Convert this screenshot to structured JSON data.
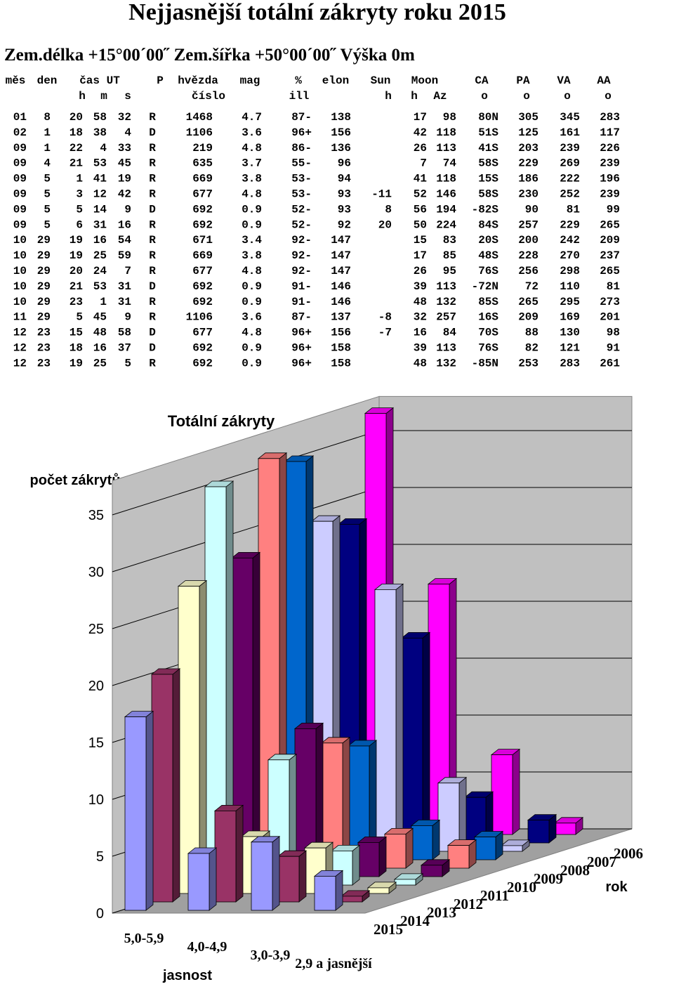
{
  "header": {
    "title": "Nejjasnější totální zákryty roku  2015",
    "location": "Zem.délka +15°00´00˝  Zem.šířka +50°00´00˝  Výška 0m"
  },
  "table": {
    "head1": [
      "měs",
      "den",
      "čas UT",
      "P",
      "hvězda",
      "mag",
      "%",
      "elon",
      "Sun",
      "Moon",
      "CA",
      "PA",
      "VA",
      "AA"
    ],
    "head2": [
      "h",
      "m",
      "s",
      "číslo",
      "ill",
      "h",
      "h",
      "Az",
      "o",
      "o",
      "o",
      "o"
    ],
    "rows": [
      [
        "01",
        "8",
        "20",
        "58",
        "32",
        "R",
        "1468",
        "4.7",
        "87-",
        "138",
        null,
        "17",
        "98",
        "80N",
        "305",
        "345",
        "283"
      ],
      [
        "02",
        "1",
        "18",
        "38",
        "4",
        "D",
        "1106",
        "3.6",
        "96+",
        "156",
        null,
        "42",
        "118",
        "51S",
        "125",
        "161",
        "117"
      ],
      [
        "09",
        "1",
        "22",
        "4",
        "33",
        "R",
        "219",
        "4.8",
        "86-",
        "136",
        null,
        "26",
        "113",
        "41S",
        "203",
        "239",
        "226"
      ],
      [
        "09",
        "4",
        "21",
        "53",
        "45",
        "R",
        "635",
        "3.7",
        "55-",
        "96",
        null,
        "7",
        "74",
        "58S",
        "229",
        "269",
        "239"
      ],
      [
        "09",
        "5",
        "1",
        "41",
        "19",
        "R",
        "669",
        "3.8",
        "53-",
        "94",
        null,
        "41",
        "118",
        "15S",
        "186",
        "222",
        "196"
      ],
      [
        "09",
        "5",
        "3",
        "12",
        "42",
        "R",
        "677",
        "4.8",
        "53-",
        "93",
        "-11",
        "52",
        "146",
        "58S",
        "230",
        "252",
        "239"
      ],
      [
        "09",
        "5",
        "5",
        "14",
        "9",
        "D",
        "692",
        "0.9",
        "52-",
        "93",
        "8",
        "56",
        "194",
        "-82S",
        "90",
        "81",
        "99"
      ],
      [
        "09",
        "5",
        "6",
        "31",
        "16",
        "R",
        "692",
        "0.9",
        "52-",
        "92",
        "20",
        "50",
        "224",
        "84S",
        "257",
        "229",
        "265"
      ],
      [
        "10",
        "29",
        "19",
        "16",
        "54",
        "R",
        "671",
        "3.4",
        "92-",
        "147",
        null,
        "15",
        "83",
        "20S",
        "200",
        "242",
        "209"
      ],
      [
        "10",
        "29",
        "19",
        "25",
        "59",
        "R",
        "669",
        "3.8",
        "92-",
        "147",
        null,
        "17",
        "85",
        "48S",
        "228",
        "270",
        "237"
      ],
      [
        "10",
        "29",
        "20",
        "24",
        "7",
        "R",
        "677",
        "4.8",
        "92-",
        "147",
        null,
        "26",
        "95",
        "76S",
        "256",
        "298",
        "265"
      ],
      [
        "10",
        "29",
        "21",
        "53",
        "31",
        "D",
        "692",
        "0.9",
        "91-",
        "146",
        null,
        "39",
        "113",
        "-72N",
        "72",
        "110",
        "81"
      ],
      [
        "10",
        "29",
        "23",
        "1",
        "31",
        "R",
        "692",
        "0.9",
        "91-",
        "146",
        null,
        "48",
        "132",
        "85S",
        "265",
        "295",
        "273"
      ],
      [
        "11",
        "29",
        "5",
        "45",
        "9",
        "R",
        "1106",
        "3.6",
        "87-",
        "137",
        "-8",
        "32",
        "257",
        "16S",
        "209",
        "169",
        "201"
      ],
      [
        "12",
        "23",
        "15",
        "48",
        "58",
        "D",
        "677",
        "4.8",
        "96+",
        "156",
        "-7",
        "16",
        "84",
        "70S",
        "88",
        "130",
        "98"
      ],
      [
        "12",
        "23",
        "18",
        "16",
        "37",
        "D",
        "692",
        "0.9",
        "96+",
        "158",
        null,
        "39",
        "113",
        "76S",
        "82",
        "121",
        "91"
      ],
      [
        "12",
        "23",
        "19",
        "25",
        "5",
        "R",
        "692",
        "0.9",
        "96+",
        "158",
        null,
        "48",
        "132",
        "-85N",
        "253",
        "283",
        "261"
      ]
    ]
  },
  "chart_data": {
    "type": "bar3d",
    "title": "Totální zákryty",
    "subtitle": "2015",
    "y_label": "počet zákrytů",
    "x_label": "jasnost",
    "z_label": "rok",
    "categories": [
      "5,0-5,9",
      "4,0-4,9",
      "3,0-3,9",
      "2,9 a jasnější"
    ],
    "series": [
      {
        "name": "2006",
        "color": "#ff00ff",
        "values": [
          37,
          22,
          7,
          1
        ]
      },
      {
        "name": "2007",
        "color": "#000080",
        "values": [
          28,
          18,
          4,
          2
        ]
      },
      {
        "name": "2008",
        "color": "#ccccff",
        "values": [
          29,
          23,
          6,
          0.5
        ]
      },
      {
        "name": "2009",
        "color": "#0066cc",
        "values": [
          35,
          10,
          3,
          2
        ]
      },
      {
        "name": "2010",
        "color": "#ff8080",
        "values": [
          36,
          11,
          3,
          2
        ]
      },
      {
        "name": "2011",
        "color": "#660066",
        "values": [
          28,
          13,
          3,
          1
        ]
      },
      {
        "name": "2012",
        "color": "#ccffff",
        "values": [
          35,
          11,
          3,
          0.5
        ]
      },
      {
        "name": "2013",
        "color": "#ffffcc",
        "values": [
          27,
          5,
          4,
          0.5
        ]
      },
      {
        "name": "2014",
        "color": "#993366",
        "values": [
          20,
          8,
          4,
          0.5
        ]
      },
      {
        "name": "2015",
        "color": "#9999ff",
        "values": [
          17,
          5,
          6,
          3
        ]
      }
    ],
    "ylim": [
      0,
      38
    ],
    "yticks": [
      0,
      5,
      10,
      15,
      20,
      25,
      30,
      35
    ],
    "grid": true
  }
}
